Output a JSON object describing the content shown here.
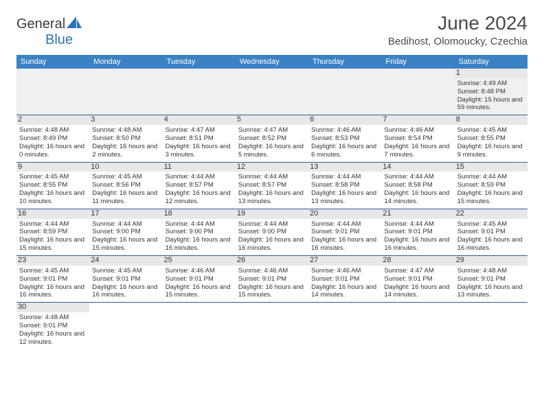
{
  "logo": {
    "text1": "General",
    "text2": "Blue"
  },
  "title": "June 2024",
  "location": "Bedihost, Olomoucky, Czechia",
  "weekdays": [
    "Sunday",
    "Monday",
    "Tuesday",
    "Wednesday",
    "Thursday",
    "Friday",
    "Saturday"
  ],
  "colors": {
    "header_bg": "#3b82c4",
    "header_fg": "#ffffff",
    "rule": "#2b5f8f",
    "empty_bg": "#f0f0f0",
    "logo_blue": "#2b74b8"
  },
  "grid": [
    [
      null,
      null,
      null,
      null,
      null,
      null,
      {
        "n": "1",
        "sr": "4:49 AM",
        "ss": "8:48 PM",
        "dl": "15 hours and 59 minutes."
      }
    ],
    [
      {
        "n": "2",
        "sr": "4:48 AM",
        "ss": "8:49 PM",
        "dl": "16 hours and 0 minutes."
      },
      {
        "n": "3",
        "sr": "4:48 AM",
        "ss": "8:50 PM",
        "dl": "16 hours and 2 minutes."
      },
      {
        "n": "4",
        "sr": "4:47 AM",
        "ss": "8:51 PM",
        "dl": "16 hours and 3 minutes."
      },
      {
        "n": "5",
        "sr": "4:47 AM",
        "ss": "8:52 PM",
        "dl": "16 hours and 5 minutes."
      },
      {
        "n": "6",
        "sr": "4:46 AM",
        "ss": "8:53 PM",
        "dl": "16 hours and 6 minutes."
      },
      {
        "n": "7",
        "sr": "4:46 AM",
        "ss": "8:54 PM",
        "dl": "16 hours and 7 minutes."
      },
      {
        "n": "8",
        "sr": "4:45 AM",
        "ss": "8:55 PM",
        "dl": "16 hours and 9 minutes."
      }
    ],
    [
      {
        "n": "9",
        "sr": "4:45 AM",
        "ss": "8:55 PM",
        "dl": "16 hours and 10 minutes."
      },
      {
        "n": "10",
        "sr": "4:45 AM",
        "ss": "8:56 PM",
        "dl": "16 hours and 11 minutes."
      },
      {
        "n": "11",
        "sr": "4:44 AM",
        "ss": "8:57 PM",
        "dl": "16 hours and 12 minutes."
      },
      {
        "n": "12",
        "sr": "4:44 AM",
        "ss": "8:57 PM",
        "dl": "16 hours and 13 minutes."
      },
      {
        "n": "13",
        "sr": "4:44 AM",
        "ss": "8:58 PM",
        "dl": "16 hours and 13 minutes."
      },
      {
        "n": "14",
        "sr": "4:44 AM",
        "ss": "8:58 PM",
        "dl": "16 hours and 14 minutes."
      },
      {
        "n": "15",
        "sr": "4:44 AM",
        "ss": "8:59 PM",
        "dl": "16 hours and 15 minutes."
      }
    ],
    [
      {
        "n": "16",
        "sr": "4:44 AM",
        "ss": "8:59 PM",
        "dl": "16 hours and 15 minutes."
      },
      {
        "n": "17",
        "sr": "4:44 AM",
        "ss": "9:00 PM",
        "dl": "16 hours and 15 minutes."
      },
      {
        "n": "18",
        "sr": "4:44 AM",
        "ss": "9:00 PM",
        "dl": "16 hours and 16 minutes."
      },
      {
        "n": "19",
        "sr": "4:44 AM",
        "ss": "9:00 PM",
        "dl": "16 hours and 16 minutes."
      },
      {
        "n": "20",
        "sr": "4:44 AM",
        "ss": "9:01 PM",
        "dl": "16 hours and 16 minutes."
      },
      {
        "n": "21",
        "sr": "4:44 AM",
        "ss": "9:01 PM",
        "dl": "16 hours and 16 minutes."
      },
      {
        "n": "22",
        "sr": "4:45 AM",
        "ss": "9:01 PM",
        "dl": "16 hours and 16 minutes."
      }
    ],
    [
      {
        "n": "23",
        "sr": "4:45 AM",
        "ss": "9:01 PM",
        "dl": "16 hours and 16 minutes."
      },
      {
        "n": "24",
        "sr": "4:45 AM",
        "ss": "9:01 PM",
        "dl": "16 hours and 16 minutes."
      },
      {
        "n": "25",
        "sr": "4:46 AM",
        "ss": "9:01 PM",
        "dl": "16 hours and 15 minutes."
      },
      {
        "n": "26",
        "sr": "4:46 AM",
        "ss": "9:01 PM",
        "dl": "16 hours and 15 minutes."
      },
      {
        "n": "27",
        "sr": "4:46 AM",
        "ss": "9:01 PM",
        "dl": "16 hours and 14 minutes."
      },
      {
        "n": "28",
        "sr": "4:47 AM",
        "ss": "9:01 PM",
        "dl": "16 hours and 14 minutes."
      },
      {
        "n": "29",
        "sr": "4:48 AM",
        "ss": "9:01 PM",
        "dl": "16 hours and 13 minutes."
      }
    ],
    [
      {
        "n": "30",
        "sr": "4:48 AM",
        "ss": "9:01 PM",
        "dl": "16 hours and 12 minutes."
      },
      null,
      null,
      null,
      null,
      null,
      null
    ]
  ],
  "labels": {
    "sunrise": "Sunrise: ",
    "sunset": "Sunset: ",
    "daylight": "Daylight: "
  }
}
